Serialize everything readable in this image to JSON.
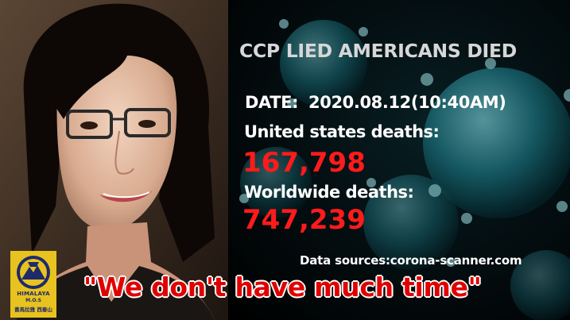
{
  "headline": "CCP LIED AMERICANS DIED",
  "date": {
    "label": "DATE:",
    "value": "2020.08.12(10:40AM)"
  },
  "us": {
    "label": "United states deaths:",
    "value": "167,798"
  },
  "worldwide": {
    "label": "Worldwide deaths:",
    "value": "747,239"
  },
  "source": "Data sources:corona-scanner.com",
  "quote": "\"We don't have much time\"",
  "logo": {
    "line1": "HIMALAYA",
    "line2": "M.O.S",
    "line3": "喜馬拉雅 西秦山"
  },
  "colors": {
    "accent_red": "#ff1b1b",
    "quote_red": "#e00000",
    "logo_yellow": "#e8c21e",
    "logo_blue": "#1d2a6b"
  }
}
